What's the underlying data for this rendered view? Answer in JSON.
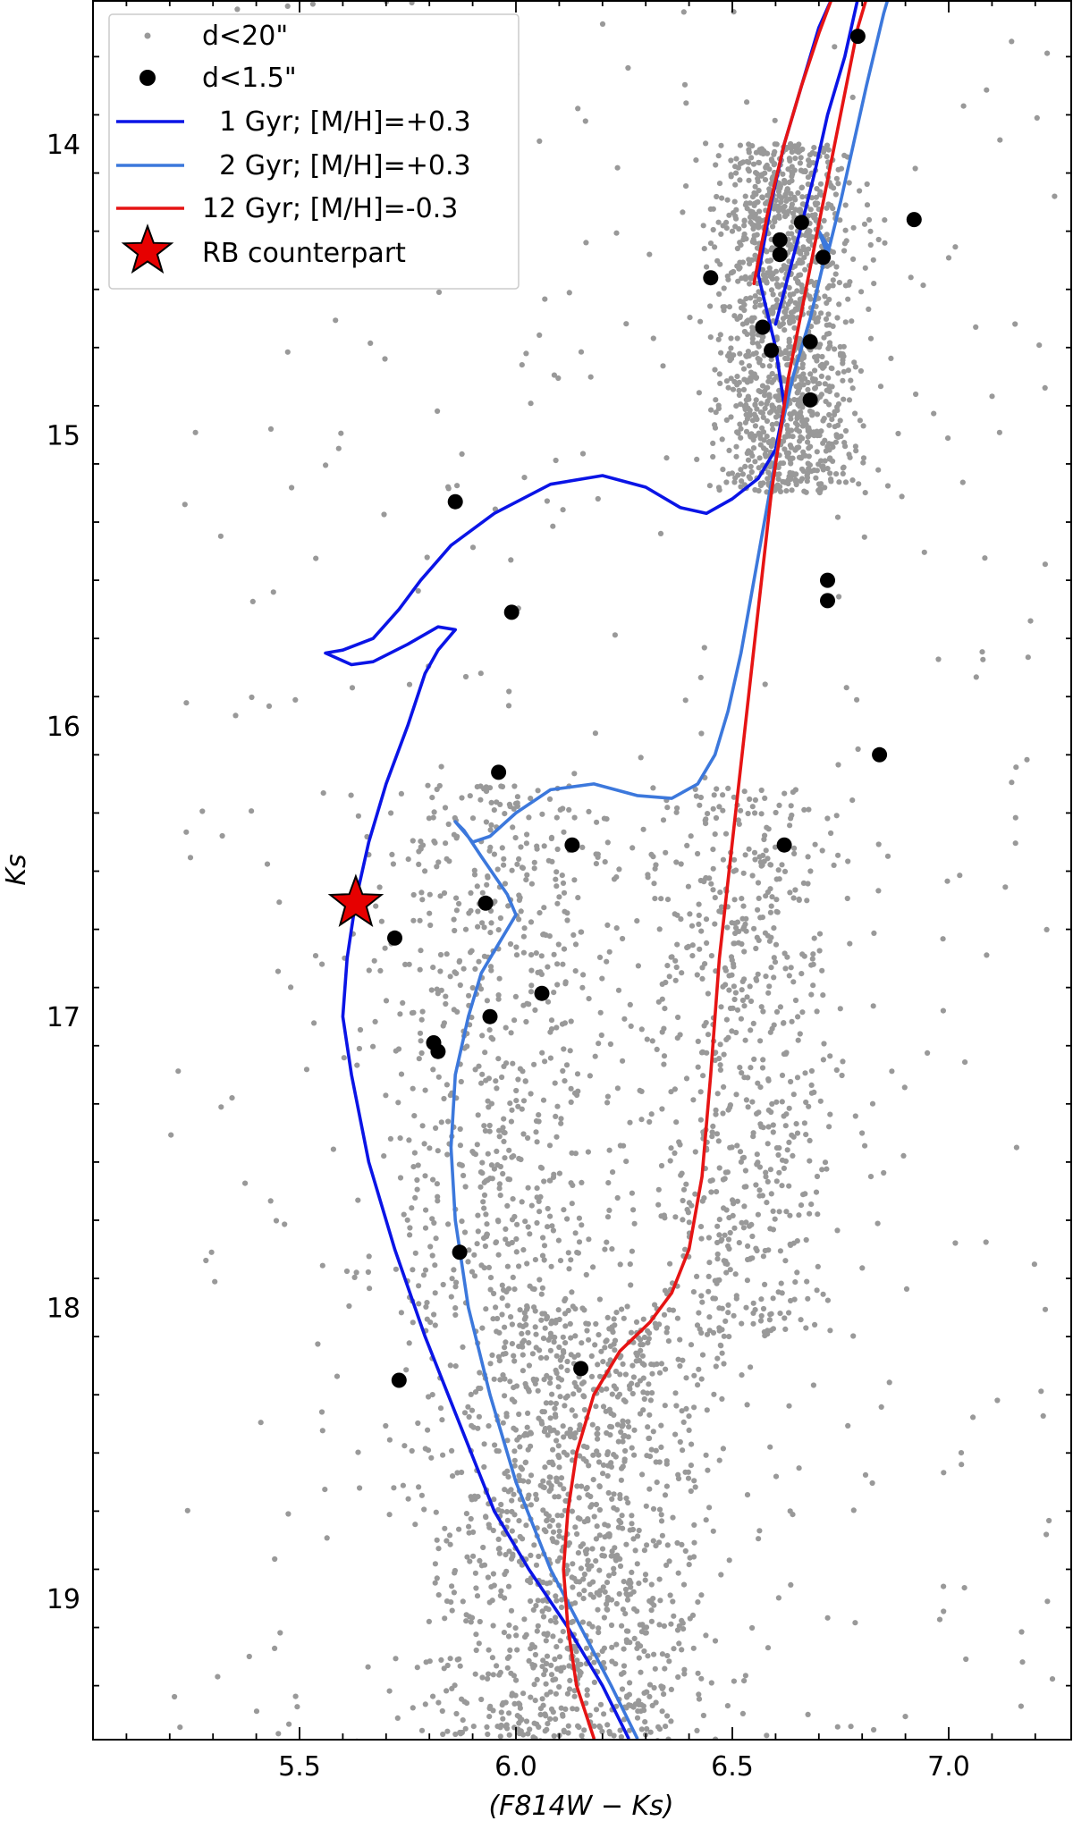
{
  "chart_data": {
    "type": "scatter",
    "xlabel": "(F814W − Ks)",
    "ylabel": "Ks",
    "xlim": [
      5.0,
      7.28
    ],
    "ylim": [
      19.48,
      13.5
    ],
    "y_inverted": true,
    "x_ticks": [
      5.5,
      6.0,
      6.5,
      7.0
    ],
    "x_tick_labels": [
      "5.5",
      "6.0",
      "6.5",
      "7.0"
    ],
    "y_ticks": [
      14,
      15,
      16,
      17,
      18,
      19
    ],
    "y_tick_labels": [
      "14",
      "15",
      "16",
      "17",
      "18",
      "19"
    ],
    "grid": false,
    "legend_position": "top-left",
    "legend": [
      {
        "label": "d<20\"",
        "marker": "small-dot",
        "color": "#999999"
      },
      {
        "label": "d<1.5\"",
        "marker": "dot",
        "color": "#000000"
      },
      {
        "label": "  1 Gyr; [M/H]=+0.3",
        "marker": "line",
        "color": "#0a14e6"
      },
      {
        "label": "  2 Gyr; [M/H]=+0.3",
        "marker": "line",
        "color": "#3c78dc"
      },
      {
        "label": "12 Gyr; [M/H]=-0.3",
        "marker": "line",
        "color": "#e61414"
      },
      {
        "label": "RB counterpart",
        "marker": "star",
        "color": "#e60000"
      }
    ],
    "series": [
      {
        "name": "d<20\"",
        "kind": "density-field",
        "color": "#999999",
        "note_regions": [
          {
            "x": [
              5.85,
              6.4
            ],
            "y": [
              18.0,
              19.5
            ],
            "density": "high"
          },
          {
            "x": [
              5.75,
              6.2
            ],
            "y": [
              16.2,
              18.0
            ],
            "density": "medium"
          },
          {
            "x": [
              6.35,
              6.7
            ],
            "y": [
              16.2,
              18.1
            ],
            "density": "medium"
          },
          {
            "x": [
              6.5,
              6.75
            ],
            "y": [
              14.0,
              15.2
            ],
            "density": "high"
          }
        ]
      },
      {
        "name": "d<1.5\"",
        "kind": "points",
        "color": "#000000",
        "points": [
          [
            6.79,
            13.63
          ],
          [
            6.45,
            14.46
          ],
          [
            6.61,
            14.33
          ],
          [
            6.61,
            14.38
          ],
          [
            6.66,
            14.27
          ],
          [
            6.71,
            14.39
          ],
          [
            6.92,
            14.26
          ],
          [
            6.57,
            14.63
          ],
          [
            6.59,
            14.71
          ],
          [
            6.68,
            14.68
          ],
          [
            6.68,
            14.88
          ],
          [
            5.86,
            15.23
          ],
          [
            6.72,
            15.5
          ],
          [
            6.72,
            15.57
          ],
          [
            5.99,
            15.61
          ],
          [
            6.84,
            16.1
          ],
          [
            5.96,
            16.16
          ],
          [
            6.13,
            16.41
          ],
          [
            6.62,
            16.41
          ],
          [
            5.93,
            16.61
          ],
          [
            5.72,
            16.73
          ],
          [
            6.06,
            16.92
          ],
          [
            5.94,
            17.0
          ],
          [
            5.81,
            17.09
          ],
          [
            5.82,
            17.12
          ],
          [
            5.87,
            17.81
          ],
          [
            6.15,
            18.21
          ],
          [
            5.73,
            18.25
          ]
        ]
      },
      {
        "name": "RB counterpart",
        "kind": "points",
        "color": "#e60000",
        "points": [
          [
            5.63,
            16.61
          ]
        ]
      },
      {
        "name": "1 Gyr; [M/H]=+0.3",
        "kind": "line",
        "color": "#0a14e6",
        "points": [
          [
            6.26,
            19.48
          ],
          [
            6.2,
            19.3
          ],
          [
            6.12,
            19.1
          ],
          [
            6.03,
            18.9
          ],
          [
            5.95,
            18.7
          ],
          [
            5.87,
            18.4
          ],
          [
            5.79,
            18.1
          ],
          [
            5.72,
            17.8
          ],
          [
            5.66,
            17.5
          ],
          [
            5.62,
            17.2
          ],
          [
            5.6,
            17.0
          ],
          [
            5.61,
            16.8
          ],
          [
            5.63,
            16.6
          ],
          [
            5.66,
            16.4
          ],
          [
            5.7,
            16.2
          ],
          [
            5.75,
            16.0
          ],
          [
            5.79,
            15.82
          ],
          [
            5.82,
            15.74
          ],
          [
            5.86,
            15.67
          ],
          [
            5.82,
            15.66
          ],
          [
            5.75,
            15.72
          ],
          [
            5.67,
            15.78
          ],
          [
            5.62,
            15.79
          ],
          [
            5.56,
            15.75
          ],
          [
            5.6,
            15.74
          ],
          [
            5.67,
            15.7
          ],
          [
            5.73,
            15.6
          ],
          [
            5.78,
            15.5
          ],
          [
            5.85,
            15.38
          ],
          [
            5.95,
            15.27
          ],
          [
            6.08,
            15.17
          ],
          [
            6.2,
            15.14
          ],
          [
            6.3,
            15.18
          ],
          [
            6.38,
            15.25
          ],
          [
            6.44,
            15.27
          ],
          [
            6.5,
            15.22
          ],
          [
            6.56,
            15.15
          ],
          [
            6.6,
            15.05
          ],
          [
            6.62,
            14.9
          ],
          [
            6.6,
            14.7
          ],
          [
            6.56,
            14.45
          ],
          [
            6.59,
            14.2
          ],
          [
            6.62,
            14.0
          ],
          [
            6.66,
            13.8
          ],
          [
            6.7,
            13.6
          ],
          [
            6.73,
            13.5
          ]
        ]
      },
      {
        "name": "1 Gyr; [M/H]=+0.3 (upper branch)",
        "kind": "line",
        "color": "#0a14e6",
        "points": [
          [
            6.6,
            14.62
          ],
          [
            6.63,
            14.45
          ],
          [
            6.66,
            14.28
          ],
          [
            6.69,
            14.1
          ],
          [
            6.72,
            13.9
          ],
          [
            6.76,
            13.7
          ],
          [
            6.79,
            13.5
          ]
        ]
      },
      {
        "name": "2 Gyr; [M/H]=+0.3",
        "kind": "line",
        "color": "#3c78dc",
        "points": [
          [
            6.28,
            19.48
          ],
          [
            6.22,
            19.3
          ],
          [
            6.15,
            19.1
          ],
          [
            6.08,
            18.9
          ],
          [
            6.0,
            18.6
          ],
          [
            5.94,
            18.3
          ],
          [
            5.89,
            18.0
          ],
          [
            5.86,
            17.7
          ],
          [
            5.85,
            17.45
          ],
          [
            5.86,
            17.2
          ],
          [
            5.89,
            17.0
          ],
          [
            5.92,
            16.85
          ],
          [
            5.96,
            16.75
          ],
          [
            6.0,
            16.65
          ],
          [
            5.98,
            16.58
          ],
          [
            5.92,
            16.45
          ],
          [
            5.88,
            16.36
          ],
          [
            5.86,
            16.33
          ],
          [
            5.9,
            16.4
          ],
          [
            5.94,
            16.38
          ],
          [
            6.0,
            16.3
          ],
          [
            6.08,
            16.22
          ],
          [
            6.18,
            16.2
          ],
          [
            6.28,
            16.24
          ],
          [
            6.36,
            16.25
          ],
          [
            6.42,
            16.2
          ],
          [
            6.46,
            16.1
          ],
          [
            6.49,
            15.95
          ],
          [
            6.52,
            15.75
          ],
          [
            6.55,
            15.5
          ],
          [
            6.58,
            15.25
          ],
          [
            6.61,
            15.0
          ],
          [
            6.64,
            14.8
          ],
          [
            6.68,
            14.6
          ],
          [
            6.72,
            14.35
          ],
          [
            6.7,
            14.3
          ],
          [
            6.72,
            14.38
          ],
          [
            6.75,
            14.2
          ],
          [
            6.78,
            14.0
          ],
          [
            6.81,
            13.8
          ],
          [
            6.85,
            13.55
          ],
          [
            6.86,
            13.5
          ]
        ]
      },
      {
        "name": "12 Gyr; [M/H]=-0.3",
        "kind": "line",
        "color": "#e61414",
        "points": [
          [
            6.18,
            19.48
          ],
          [
            6.14,
            19.3
          ],
          [
            6.12,
            19.1
          ],
          [
            6.11,
            18.9
          ],
          [
            6.12,
            18.7
          ],
          [
            6.14,
            18.5
          ],
          [
            6.18,
            18.3
          ],
          [
            6.24,
            18.15
          ],
          [
            6.31,
            18.05
          ],
          [
            6.36,
            17.95
          ],
          [
            6.4,
            17.8
          ],
          [
            6.43,
            17.55
          ],
          [
            6.45,
            17.2
          ],
          [
            6.47,
            16.8
          ],
          [
            6.5,
            16.4
          ],
          [
            6.53,
            16.0
          ],
          [
            6.56,
            15.6
          ],
          [
            6.59,
            15.2
          ],
          [
            6.63,
            14.8
          ],
          [
            6.67,
            14.5
          ],
          [
            6.71,
            14.2
          ],
          [
            6.75,
            13.9
          ],
          [
            6.79,
            13.6
          ],
          [
            6.81,
            13.5
          ]
        ]
      },
      {
        "name": "12 Gyr; [M/H]=-0.3 (upper branch)",
        "kind": "line",
        "color": "#e61414",
        "points": [
          [
            6.55,
            14.48
          ],
          [
            6.58,
            14.25
          ],
          [
            6.62,
            14.0
          ],
          [
            6.66,
            13.8
          ],
          [
            6.7,
            13.62
          ],
          [
            6.73,
            13.5
          ]
        ]
      }
    ]
  }
}
